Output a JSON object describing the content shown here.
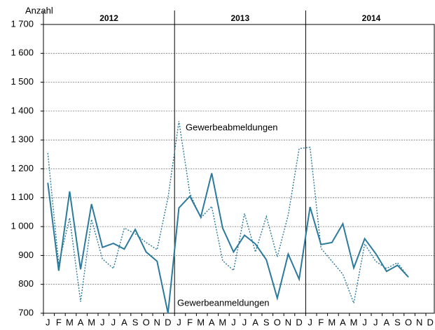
{
  "chart_data": {
    "type": "line",
    "y_label": "Anzahl",
    "years": [
      "2012",
      "2013",
      "2014"
    ],
    "categories": [
      "J",
      "F",
      "M",
      "A",
      "M",
      "J",
      "J",
      "A",
      "S",
      "O",
      "N",
      "D",
      "J",
      "F",
      "M",
      "A",
      "M",
      "J",
      "J",
      "A",
      "S",
      "O",
      "N",
      "D",
      "J",
      "F",
      "M",
      "A",
      "M",
      "J",
      "J",
      "A",
      "S",
      "O",
      "N",
      "D"
    ],
    "series": [
      {
        "name": "Gewerbeanmeldungen",
        "color": "#2b7a9c",
        "dash": false,
        "values": [
          1152,
          847,
          1122,
          852,
          1078,
          928,
          942,
          922,
          990,
          912,
          880,
          700,
          1065,
          1105,
          1033,
          1185,
          995,
          912,
          970,
          940,
          885,
          752,
          905,
          818,
          1068,
          938,
          945,
          1010,
          857,
          958,
          907,
          845,
          866,
          825,
          null,
          null
        ]
      },
      {
        "name": "Gewerbeabmeldungen",
        "color": "#2b7a9c",
        "dash": true,
        "values": [
          1255,
          870,
          1030,
          740,
          1025,
          888,
          855,
          995,
          975,
          945,
          920,
          1100,
          1365,
          1115,
          1030,
          1070,
          882,
          848,
          1045,
          912,
          1035,
          895,
          1040,
          1270,
          1275,
          925,
          880,
          835,
          735,
          940,
          880,
          855,
          875,
          825,
          null,
          null
        ]
      }
    ],
    "ylim": [
      700,
      1700
    ],
    "yticks": [
      700,
      800,
      900,
      {
        "value": 1000,
        "label": "1 000"
      },
      {
        "value": 1100,
        "label": "1 100"
      },
      {
        "value": 1200,
        "label": "1 200"
      },
      {
        "value": 1300,
        "label": "1 300"
      },
      {
        "value": 1400,
        "label": "1 400"
      },
      {
        "value": 1500,
        "label": "1 500"
      },
      {
        "value": 1600,
        "label": "1 600"
      },
      {
        "value": 1700,
        "label": "1 700"
      }
    ],
    "grid": true
  }
}
